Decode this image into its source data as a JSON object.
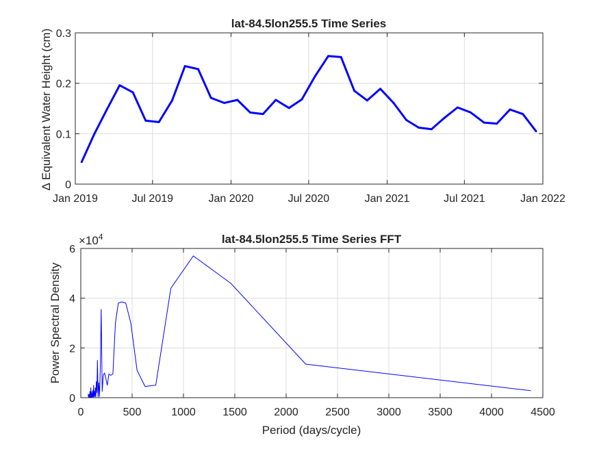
{
  "chart_data": [
    {
      "type": "line",
      "title": "lat-84.5lon255.5 Time Series",
      "ylabel_symbol": "Δ",
      "ylabel": "Equivalent Water Height (cm)",
      "xlabel": "",
      "ylim": [
        0,
        0.3
      ],
      "yticks": [
        0,
        0.1,
        0.2,
        0.3
      ],
      "ytick_labels": [
        "0",
        "0.1",
        "0.2",
        "0.3"
      ],
      "xlim": [
        "2019-01-01",
        "2022-01-01"
      ],
      "xticks": [
        "2019-01-01",
        "2019-07-01",
        "2020-01-01",
        "2020-07-01",
        "2021-01-01",
        "2021-07-01",
        "2022-01-01"
      ],
      "xtick_labels": [
        "Jan 2019",
        "Jul 2019",
        "Jan 2020",
        "Jul 2020",
        "Jan 2021",
        "Jul 2021",
        "Jan 2022"
      ],
      "grid": true,
      "series": [
        {
          "color": "#0000ff",
          "x": [
            "2019-01-16",
            "2019-02-15",
            "2019-03-16",
            "2019-04-15",
            "2019-05-16",
            "2019-06-15",
            "2019-07-16",
            "2019-08-16",
            "2019-09-15",
            "2019-10-16",
            "2019-11-15",
            "2019-12-16",
            "2020-01-16",
            "2020-02-15",
            "2020-03-16",
            "2020-04-15",
            "2020-05-16",
            "2020-06-15",
            "2020-07-16",
            "2020-08-16",
            "2020-09-15",
            "2020-10-16",
            "2020-11-15",
            "2020-12-16",
            "2021-01-16",
            "2021-02-15",
            "2021-03-16",
            "2021-04-15",
            "2021-05-16",
            "2021-06-15",
            "2021-07-16",
            "2021-08-16",
            "2021-09-15",
            "2021-10-16",
            "2021-11-15",
            "2021-12-16"
          ],
          "y": [
            0.044,
            0.1,
            0.148,
            0.196,
            0.182,
            0.126,
            0.123,
            0.166,
            0.234,
            0.228,
            0.171,
            0.161,
            0.167,
            0.142,
            0.139,
            0.167,
            0.151,
            0.168,
            0.214,
            0.254,
            0.252,
            0.185,
            0.166,
            0.189,
            0.161,
            0.127,
            0.112,
            0.109,
            0.132,
            0.152,
            0.142,
            0.122,
            0.12,
            0.148,
            0.139,
            0.105
          ]
        }
      ]
    },
    {
      "type": "line",
      "title": "lat-84.5lon255.5 Time Series FFT",
      "xlabel": "Period (days/cycle)",
      "ylabel": "Power Spectral Density",
      "exponent_label": "×10",
      "exponent_value": "4",
      "xlim": [
        0,
        4500
      ],
      "ylim": [
        0,
        60000
      ],
      "xticks": [
        0,
        500,
        1000,
        1500,
        2000,
        2500,
        3000,
        3500,
        4000,
        4500
      ],
      "xtick_labels": [
        "0",
        "500",
        "1000",
        "1500",
        "2000",
        "2500",
        "3000",
        "3500",
        "4000",
        "4500"
      ],
      "yticks": [
        0,
        20000,
        40000,
        60000
      ],
      "ytick_labels": [
        "0",
        "2",
        "4",
        "6"
      ],
      "grid": true,
      "series": [
        {
          "color": "#0000ff",
          "x": [
            4383,
            2191,
            1461,
            1096,
            877,
            730,
            626,
            548,
            487,
            438,
            398,
            365,
            337,
            313,
            292,
            274,
            258,
            243,
            231,
            219,
            209,
            199,
            191,
            183,
            175,
            169,
            162,
            157,
            151,
            146,
            141,
            137,
            133,
            129,
            125,
            122,
            119,
            115,
            112,
            110,
            107,
            104,
            102,
            100,
            97,
            95,
            93,
            91,
            89,
            88,
            86,
            84,
            83,
            81,
            80,
            78,
            77,
            76,
            74,
            73
          ],
          "y": [
            2800,
            13500,
            46000,
            57000,
            44000,
            5000,
            4500,
            11000,
            30000,
            38000,
            38500,
            38000,
            30000,
            9500,
            9000,
            9500,
            5000,
            8000,
            10000,
            9000,
            2500,
            35500,
            14000,
            500,
            6000,
            300,
            15000,
            2000,
            6500,
            300,
            4000,
            500,
            2500,
            400,
            5000,
            200,
            3000,
            300,
            1500,
            300,
            2500,
            200,
            1500,
            300,
            4000,
            200,
            1000,
            300,
            2500,
            200,
            1500,
            300,
            500,
            200,
            1200,
            200,
            900,
            200,
            500,
            1500
          ]
        }
      ]
    }
  ]
}
